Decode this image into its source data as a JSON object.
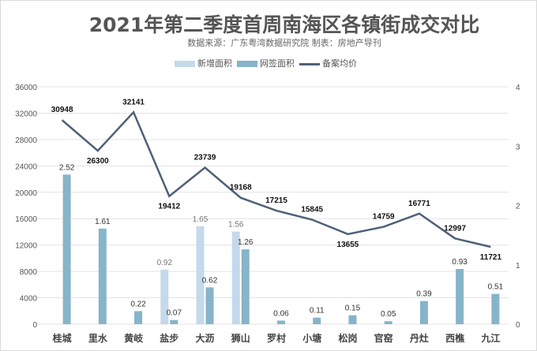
{
  "chart_data": {
    "type": "bar",
    "title": "2021年第二季度首周南海区各镇街成交对比",
    "subtitle": "数据来源：广东粤湾数据研究院    制表：房地产导刊",
    "categories": [
      "桂城",
      "里水",
      "黄岐",
      "盐步",
      "大沥",
      "狮山",
      "罗村",
      "小塘",
      "松岗",
      "官窑",
      "丹灶",
      "西樵",
      "九江"
    ],
    "series": [
      {
        "name": "新增面积",
        "type": "bar",
        "axis": "right",
        "color": "#c5d9ec",
        "values": [
          null,
          null,
          null,
          0.92,
          1.65,
          1.56,
          null,
          null,
          null,
          null,
          null,
          null,
          null
        ]
      },
      {
        "name": "网签面积",
        "type": "bar",
        "axis": "right",
        "color": "#86b4c9",
        "values": [
          2.52,
          1.61,
          0.22,
          0.07,
          0.62,
          1.26,
          0.06,
          0.11,
          0.15,
          0.05,
          0.39,
          0.93,
          0.51
        ]
      },
      {
        "name": "备案均价",
        "type": "line",
        "axis": "left",
        "color": "#4f6079",
        "values": [
          30948,
          26300,
          32141,
          19412,
          23739,
          19168,
          17215,
          15845,
          13655,
          14759,
          16771,
          12997,
          11721
        ]
      }
    ],
    "yleft": {
      "ylim": [
        0,
        36000
      ],
      "ticks": [
        0,
        4000,
        8000,
        12000,
        16000,
        20000,
        24000,
        28000,
        32000,
        36000
      ]
    },
    "yright": {
      "ylim": [
        0,
        4
      ],
      "ticks": [
        0,
        1,
        2,
        3,
        4
      ]
    },
    "grid": true,
    "legend": "top"
  }
}
